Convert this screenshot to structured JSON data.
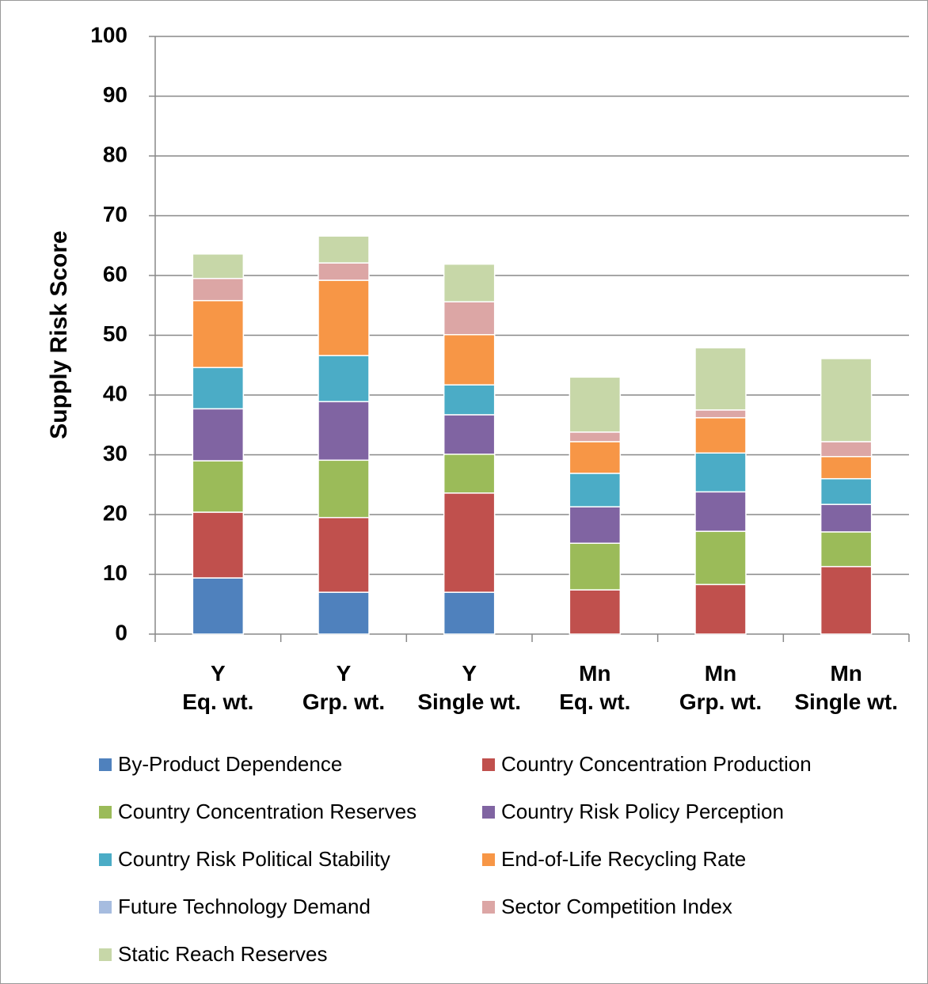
{
  "chart_data": {
    "type": "stacked_bar",
    "y_label": "Supply Risk Score",
    "categories": [
      "Y\nEq. wt.",
      "Y\nGrp. wt.",
      "Y\nSingle wt.",
      "Mn\nEq. wt.",
      "Mn\nGrp. wt.",
      "Mn\nSingle wt."
    ],
    "series": [
      {
        "name": "By-Product Dependence",
        "color": "#4f81bd",
        "values": [
          9.4,
          7.0,
          7.0,
          0,
          0,
          0
        ]
      },
      {
        "name": "Country Concentration Production",
        "color": "#c0504d",
        "values": [
          11.0,
          12.5,
          16.6,
          7.4,
          8.3,
          11.3
        ]
      },
      {
        "name": "Country Concentration Reserves",
        "color": "#9bbb59",
        "values": [
          8.6,
          9.6,
          6.5,
          7.8,
          8.9,
          5.8
        ]
      },
      {
        "name": "Country Risk Policy Perception",
        "color": "#8064a2",
        "values": [
          8.7,
          9.8,
          6.6,
          6.1,
          6.6,
          4.6
        ]
      },
      {
        "name": "Country Risk Political Stability",
        "color": "#4bacc6",
        "values": [
          6.9,
          7.7,
          5.0,
          5.6,
          6.5,
          4.3
        ]
      },
      {
        "name": "End-of-Life Recycling Rate",
        "color": "#f79646",
        "values": [
          11.2,
          12.6,
          8.4,
          5.3,
          5.9,
          3.7
        ]
      },
      {
        "name": "Future Technology Demand",
        "color": "#a6bcdf",
        "values": [
          0,
          0,
          0,
          0,
          0,
          0
        ]
      },
      {
        "name": "Sector Competition Index",
        "color": "#dca6a5",
        "values": [
          3.7,
          2.9,
          5.5,
          1.6,
          1.3,
          2.5
        ]
      },
      {
        "name": "Static Reach Reserves",
        "color": "#c7d7a8",
        "values": [
          4.1,
          4.5,
          6.3,
          9.2,
          10.4,
          13.9
        ]
      }
    ],
    "ylim": [
      0,
      100
    ],
    "yticks": [
      0,
      10,
      20,
      30,
      40,
      50,
      60,
      70,
      80,
      90,
      100
    ],
    "grid": true
  }
}
